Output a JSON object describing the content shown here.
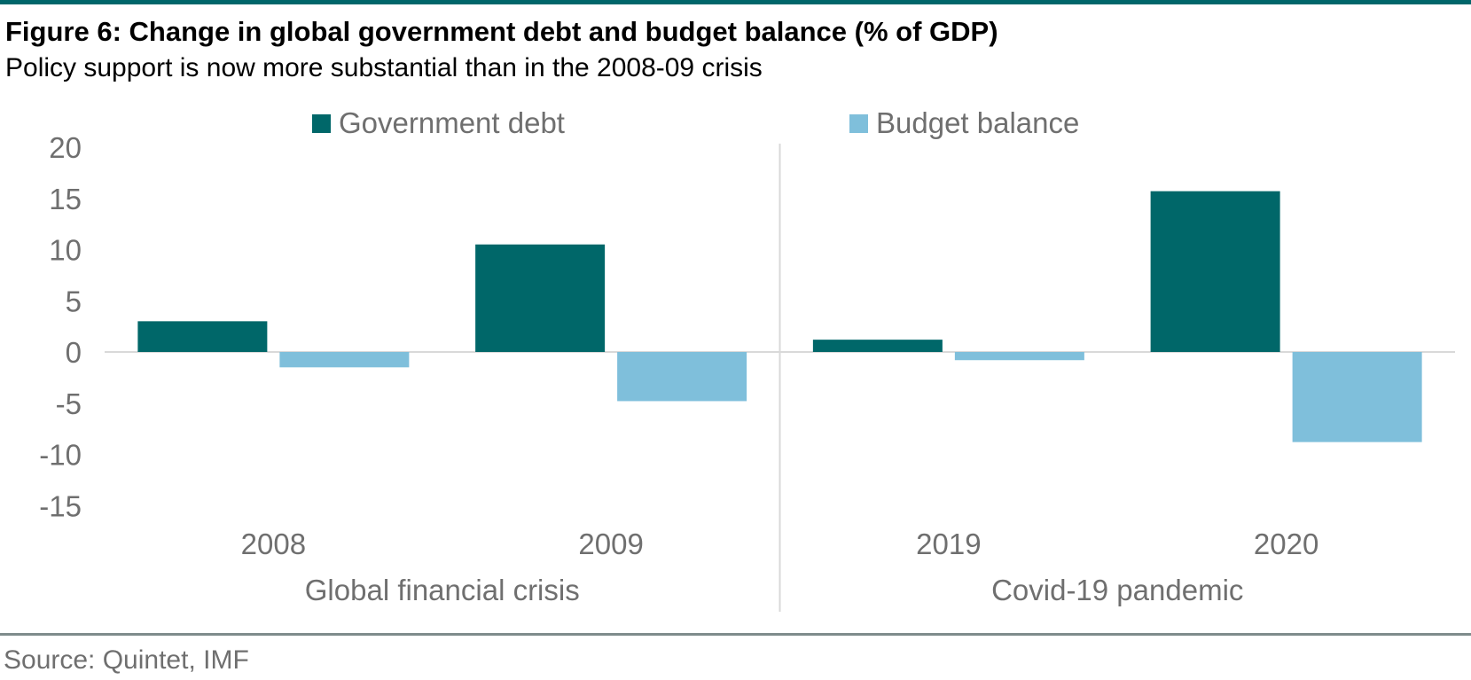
{
  "header": {
    "title": "Figure 6: Change in global government debt and budget balance (% of GDP)",
    "subtitle": "Policy support is now more substantial than in the 2008-09 crisis"
  },
  "footer": {
    "source": "Source: Quintet, IMF"
  },
  "colors": {
    "accent_rule": "#00666a",
    "debt": "#006769",
    "balance": "#7fbfdb",
    "axis_text": "#6f6f6f"
  },
  "chart_data": {
    "type": "bar",
    "categories": [
      "2008",
      "2009",
      "2019",
      "2020"
    ],
    "groups": [
      {
        "label": "Global financial crisis",
        "categories": [
          "2008",
          "2009"
        ]
      },
      {
        "label": "Covid-19 pandemic",
        "categories": [
          "2019",
          "2020"
        ]
      }
    ],
    "series": [
      {
        "name": "Government debt",
        "values": [
          3.0,
          10.5,
          1.2,
          15.7
        ]
      },
      {
        "name": "Budget balance",
        "values": [
          -1.5,
          -4.8,
          -0.8,
          -8.8
        ]
      }
    ],
    "yticks": [
      20,
      15,
      10,
      5,
      0,
      -5,
      -10,
      -15
    ],
    "ylim": [
      -15,
      20
    ],
    "legend_position": "top",
    "grid": false
  }
}
